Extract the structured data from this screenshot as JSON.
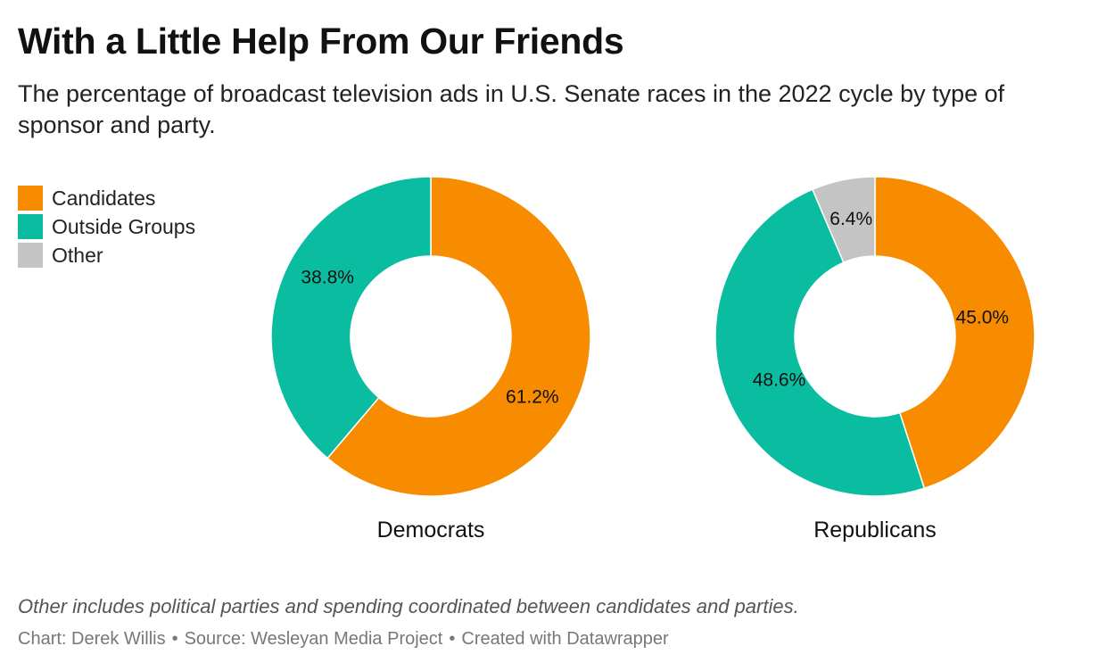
{
  "title": "With a Little Help From Our Friends",
  "subtitle": "The percentage of broadcast television ads in U.S. Senate races in the 2022 cycle by type of sponsor and party.",
  "legend": [
    {
      "label": "Candidates",
      "color": "#f78c00"
    },
    {
      "label": "Outside Groups",
      "color": "#0abca0"
    },
    {
      "label": "Other",
      "color": "#c4c4c4"
    }
  ],
  "chart_data": [
    {
      "type": "pie",
      "variant": "donut",
      "title": "Democrats",
      "categories": [
        "Candidates",
        "Outside Groups"
      ],
      "values": [
        61.2,
        38.8
      ],
      "labels": [
        "61.2%",
        "38.8%"
      ],
      "colors": [
        "#f78c00",
        "#0abca0"
      ]
    },
    {
      "type": "pie",
      "variant": "donut",
      "title": "Republicans",
      "categories": [
        "Candidates",
        "Outside Groups",
        "Other"
      ],
      "values": [
        45.0,
        48.6,
        6.4
      ],
      "labels": [
        "45.0%",
        "48.6%",
        "6.4%"
      ],
      "colors": [
        "#f78c00",
        "#0abca0",
        "#c4c4c4"
      ]
    }
  ],
  "note": "Other includes political parties and spending coordinated between candidates and parties.",
  "credit": {
    "chart": "Chart: Derek Willis",
    "separator": "•",
    "source": "Source: Wesleyan Media Project",
    "created": "Created with Datawrapper"
  }
}
